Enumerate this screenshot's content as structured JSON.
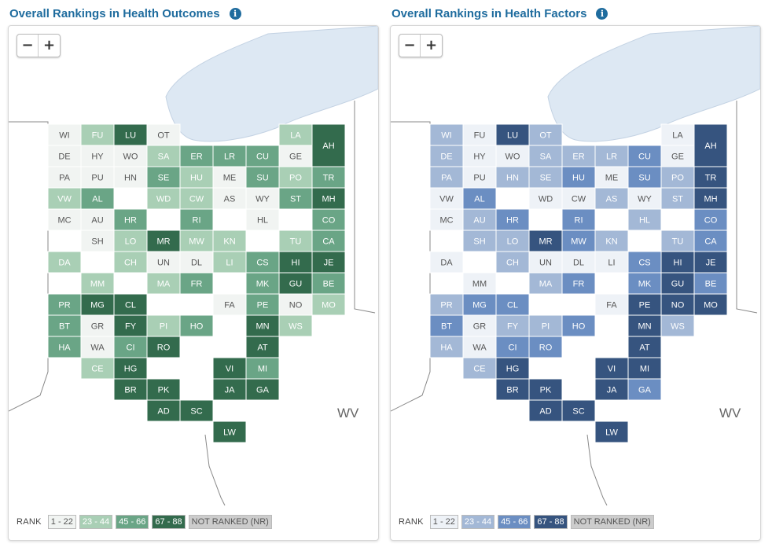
{
  "maps": [
    {
      "title": "Overall Rankings in Health Outcomes",
      "palette": [
        "#f1f4f2",
        "#a9cfb5",
        "#6aa586",
        "#336b4d",
        "#cccccc"
      ],
      "label_colors": [
        "#555555",
        "#ffffff",
        "#ffffff",
        "#ffffff",
        "#555555"
      ],
      "legend": [
        "1 - 22",
        "23 - 44",
        "45 - 66",
        "67 - 88",
        "NOT RANKED (NR)"
      ],
      "counties": {
        "WI": 0,
        "FU": 1,
        "LU": 3,
        "OT": 0,
        "DE": 0,
        "HY": 0,
        "WO": 0,
        "SA": 1,
        "ER": 2,
        "LR": 2,
        "CU": 2,
        "LA": 1,
        "AH": 3,
        "GE": 0,
        "PA": 0,
        "PU": 0,
        "HN": 0,
        "SE": 2,
        "HU": 1,
        "ME": 0,
        "SU": 2,
        "PO": 1,
        "TR": 2,
        "VW": 1,
        "AL": 2,
        "WD": 1,
        "CW": 1,
        "RI": 2,
        "AS": 0,
        "WY": 0,
        "ST": 2,
        "MH": 3,
        "CO": 2,
        "MC": 0,
        "AU": 0,
        "HR": 2,
        "MR": 3,
        "MW": 1,
        "HL": 0,
        "CA": 2,
        "SH": 0,
        "LO": 1,
        "UN": 0,
        "DL": 0,
        "KN": 1,
        "TU": 1,
        "JE": 3,
        "HI": 3,
        "CH": 1,
        "DA": 1,
        "MM": 1,
        "LI": 1,
        "CS": 2,
        "GU": 3,
        "BE": 2,
        "CL": 3,
        "MA": 1,
        "FR": 2,
        "MK": 2,
        "PR": 2,
        "MG": 3,
        "GR": 0,
        "FA": 0,
        "PE": 2,
        "NO": 0,
        "MO": 1,
        "FY": 3,
        "PI": 1,
        "MN": 3,
        "BT": 2,
        "WA": 0,
        "CI": 2,
        "HO": 2,
        "WS": 1,
        "RO": 3,
        "AT": 3,
        "HA": 2,
        "HG": 3,
        "VI": 3,
        "MI": 2,
        "CE": 1,
        "PK": 3,
        "JA": 3,
        "BR": 3,
        "AD": 3,
        "SC": 3,
        "GA": 3,
        "LW": 3
      },
      "rank_label": "RANK",
      "wv_label": "WV"
    },
    {
      "title": "Overall Rankings in Health Factors",
      "palette": [
        "#eef2f7",
        "#a3b8d6",
        "#6b8ec2",
        "#36547f",
        "#cccccc"
      ],
      "label_colors": [
        "#555555",
        "#ffffff",
        "#ffffff",
        "#ffffff",
        "#555555"
      ],
      "legend": [
        "1 - 22",
        "23 - 44",
        "45 - 66",
        "67 - 88",
        "NOT RANKED (NR)"
      ],
      "counties": {
        "WI": 1,
        "FU": 0,
        "LU": 3,
        "OT": 1,
        "DE": 1,
        "HY": 0,
        "WO": 0,
        "SA": 1,
        "ER": 1,
        "LR": 1,
        "CU": 2,
        "LA": 0,
        "AH": 3,
        "GE": 0,
        "PA": 1,
        "PU": 0,
        "HN": 1,
        "SE": 1,
        "HU": 2,
        "ME": 0,
        "SU": 2,
        "PO": 1,
        "TR": 3,
        "VW": 0,
        "AL": 2,
        "WD": 0,
        "CW": 0,
        "RI": 2,
        "AS": 1,
        "WY": 0,
        "ST": 1,
        "MH": 3,
        "CO": 2,
        "MC": 0,
        "AU": 1,
        "HR": 2,
        "MR": 3,
        "MW": 2,
        "HL": 1,
        "CA": 2,
        "SH": 1,
        "LO": 1,
        "UN": 0,
        "DL": 0,
        "KN": 1,
        "TU": 1,
        "JE": 3,
        "HI": 3,
        "CH": 1,
        "DA": 0,
        "MM": 0,
        "LI": 0,
        "CS": 2,
        "GU": 3,
        "BE": 2,
        "CL": 2,
        "MA": 1,
        "FR": 2,
        "MK": 2,
        "PR": 1,
        "MG": 2,
        "GR": 0,
        "FA": 0,
        "PE": 3,
        "NO": 3,
        "MO": 3,
        "FY": 1,
        "PI": 1,
        "MN": 3,
        "BT": 2,
        "WA": 0,
        "CI": 2,
        "HO": 2,
        "WS": 1,
        "RO": 2,
        "AT": 3,
        "HA": 1,
        "HG": 3,
        "VI": 3,
        "MI": 3,
        "CE": 1,
        "PK": 3,
        "JA": 3,
        "BR": 3,
        "AD": 3,
        "SC": 3,
        "GA": 2,
        "LW": 3
      },
      "rank_label": "RANK",
      "wv_label": "WV"
    }
  ]
}
